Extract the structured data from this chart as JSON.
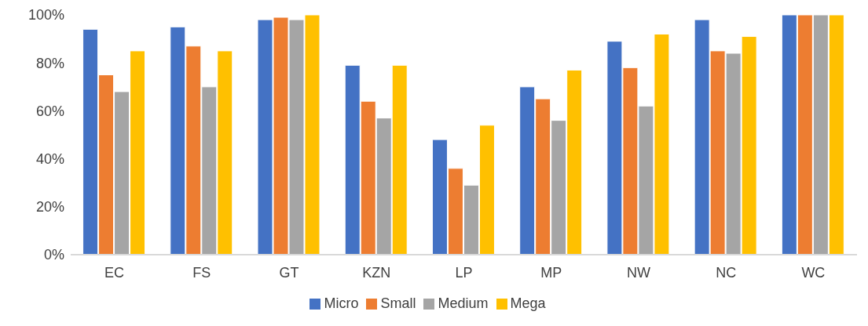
{
  "chart_data": {
    "type": "bar",
    "categories": [
      "EC",
      "FS",
      "GT",
      "KZN",
      "LP",
      "MP",
      "NW",
      "NC",
      "WC"
    ],
    "series": [
      {
        "name": "Micro",
        "color": "#4472c4",
        "values": [
          94,
          95,
          98,
          79,
          48,
          70,
          89,
          98,
          100
        ]
      },
      {
        "name": "Small",
        "color": "#ed7d31",
        "values": [
          75,
          87,
          99,
          64,
          36,
          65,
          78,
          85,
          100
        ]
      },
      {
        "name": "Medium",
        "color": "#a5a5a5",
        "values": [
          68,
          70,
          98,
          57,
          29,
          56,
          62,
          84,
          100
        ]
      },
      {
        "name": "Mega",
        "color": "#ffc000",
        "values": [
          85,
          85,
          100,
          79,
          54,
          77,
          92,
          91,
          100
        ]
      }
    ],
    "ylim": [
      0,
      100
    ],
    "yticks": [
      {
        "value": 0,
        "label": "0%"
      },
      {
        "value": 20,
        "label": "20%"
      },
      {
        "value": 40,
        "label": "40%"
      },
      {
        "value": 60,
        "label": "60%"
      },
      {
        "value": 80,
        "label": "80%"
      },
      {
        "value": 100,
        "label": "100%"
      }
    ],
    "grid": false,
    "legend": "bottom"
  }
}
